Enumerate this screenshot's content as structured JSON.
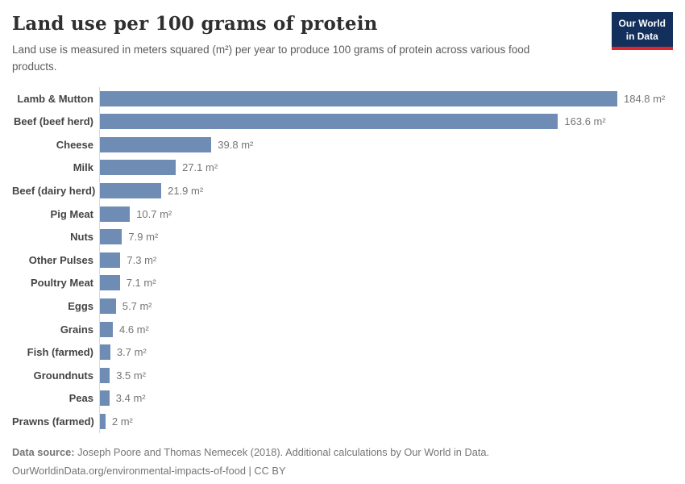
{
  "header": {
    "title": "Land use per 100 grams of protein",
    "subtitle": "Land use is measured in meters squared (m²) per year to produce 100 grams of protein across various food products."
  },
  "logo": {
    "line1": "Our World",
    "line2": "in Data"
  },
  "chart_data": {
    "type": "bar",
    "orientation": "horizontal",
    "title": "Land use per 100 grams of protein",
    "xlabel": "",
    "ylabel": "",
    "unit": "m²",
    "xlim": [
      0,
      184.8
    ],
    "grid": false,
    "legend": "none",
    "categories": [
      "Lamb & Mutton",
      "Beef (beef herd)",
      "Cheese",
      "Milk",
      "Beef (dairy herd)",
      "Pig Meat",
      "Nuts",
      "Other Pulses",
      "Poultry Meat",
      "Eggs",
      "Grains",
      "Fish (farmed)",
      "Groundnuts",
      "Peas",
      "Prawns (farmed)"
    ],
    "values": [
      184.8,
      163.6,
      39.8,
      27.1,
      21.9,
      10.7,
      7.9,
      7.3,
      7.1,
      5.7,
      4.6,
      3.7,
      3.5,
      3.4,
      2
    ],
    "value_labels": [
      "184.8 m²",
      "163.6 m²",
      "39.8 m²",
      "27.1 m²",
      "21.9 m²",
      "10.7 m²",
      "7.9 m²",
      "7.3 m²",
      "7.1 m²",
      "5.7 m²",
      "4.6 m²",
      "3.7 m²",
      "3.5 m²",
      "3.4 m²",
      "2 m²"
    ]
  },
  "colors": {
    "bar": "#6e8cb4",
    "axis_line": "#dadada",
    "title_text": "#2f2f2f",
    "subtitle_text": "#5b5b5b",
    "category_label": "#444444",
    "value_label": "#757575",
    "footer_text": "#757575",
    "logo_bg": "#12305b",
    "logo_red": "#e0262b"
  },
  "footer": {
    "source_label": "Data source:",
    "source_text": "Joseph Poore and Thomas Nemecek (2018). Additional calculations by Our World in Data.",
    "url": "OurWorldinData.org/environmental-impacts-of-food",
    "separator": " | ",
    "license": "CC BY"
  }
}
